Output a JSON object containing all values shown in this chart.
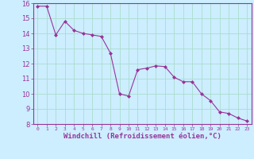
{
  "x": [
    0,
    1,
    2,
    3,
    4,
    5,
    6,
    7,
    8,
    9,
    10,
    11,
    12,
    13,
    14,
    15,
    16,
    17,
    18,
    19,
    20,
    21,
    22,
    23
  ],
  "y": [
    15.8,
    15.8,
    13.9,
    14.8,
    14.2,
    14.0,
    13.9,
    13.8,
    12.7,
    10.0,
    9.85,
    11.6,
    11.7,
    11.85,
    11.8,
    11.1,
    10.8,
    10.8,
    10.0,
    9.55,
    8.8,
    8.7,
    8.4,
    8.2
  ],
  "line_color": "#993399",
  "marker": "D",
  "marker_size": 2,
  "bg_color": "#cceeff",
  "grid_color": "#aaddcc",
  "xlabel": "Windchill (Refroidissement éolien,°C)",
  "xlabel_color": "#993399",
  "tick_color": "#993399",
  "axis_color": "#993399",
  "ylim": [
    8,
    16
  ],
  "xlim": [
    -0.5,
    23.5
  ],
  "yticks": [
    8,
    9,
    10,
    11,
    12,
    13,
    14,
    15,
    16
  ],
  "xticks": [
    0,
    1,
    2,
    3,
    4,
    5,
    6,
    7,
    8,
    9,
    10,
    11,
    12,
    13,
    14,
    15,
    16,
    17,
    18,
    19,
    20,
    21,
    22,
    23
  ]
}
